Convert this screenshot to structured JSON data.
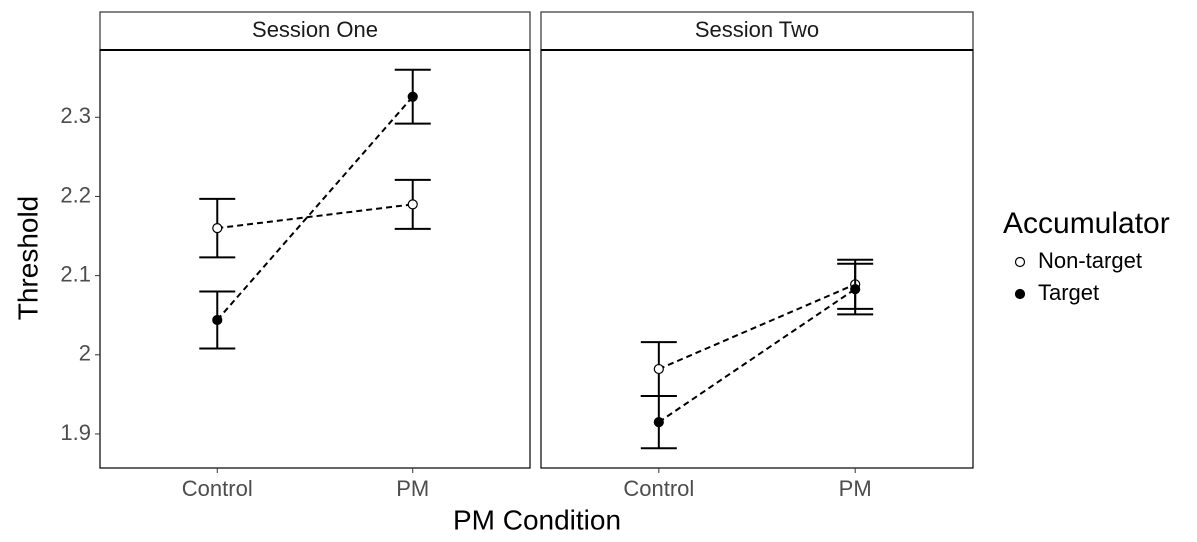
{
  "chart_data": {
    "type": "line",
    "x_label": "PM Condition",
    "y_label": "Threshold",
    "legend_title": "Accumulator",
    "facets": [
      "Session One",
      "Session Two"
    ],
    "categories": [
      "Control",
      "PM"
    ],
    "ylim": [
      1.857,
      2.385
    ],
    "yticks": [
      1.9,
      2.0,
      2.1,
      2.2,
      2.3
    ],
    "series": [
      {
        "name": "Non-target",
        "marker": "open",
        "color": "#000000",
        "values": [
          [
            2.16,
            2.19
          ],
          [
            1.982,
            2.089
          ]
        ],
        "errors": [
          [
            0.037,
            0.031
          ],
          [
            0.034,
            0.031
          ]
        ]
      },
      {
        "name": "Target",
        "marker": "filled",
        "color": "#000000",
        "values": [
          [
            2.044,
            2.326
          ],
          [
            1.915,
            2.083
          ]
        ],
        "errors": [
          [
            0.036,
            0.034
          ],
          [
            0.033,
            0.032
          ]
        ]
      }
    ]
  }
}
